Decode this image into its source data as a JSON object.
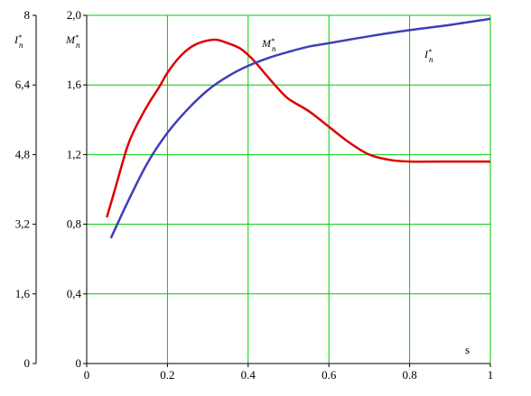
{
  "chart_data": {
    "type": "line",
    "xlabel": "s",
    "xlim": [
      0,
      1
    ],
    "x_ticks": [
      "0",
      "0.2",
      "0.4",
      "0.6",
      "0.8",
      "1"
    ],
    "y_left": {
      "label": "I*п",
      "ticks": [
        "0",
        "1,6",
        "3,2",
        "4,8",
        "6,4",
        "8"
      ],
      "ylim": [
        0,
        8
      ]
    },
    "y_right": {
      "label": "M*п",
      "ticks": [
        "0",
        "0,4",
        "0,8",
        "1,2",
        "1,6",
        "2,0"
      ],
      "ylim": [
        0,
        2.0
      ]
    },
    "grid": true,
    "grid_color": "#00cc00",
    "series": [
      {
        "name": "M*п",
        "color": "#dd0000",
        "axis": "right",
        "x": [
          0.05,
          0.07,
          0.1,
          0.12,
          0.15,
          0.18,
          0.2,
          0.23,
          0.26,
          0.29,
          0.32,
          0.35,
          0.38,
          0.41,
          0.44,
          0.47,
          0.5,
          0.55,
          0.6,
          0.65,
          0.7,
          0.75,
          0.8,
          0.9,
          1.0
        ],
        "values": [
          0.84,
          1.0,
          1.24,
          1.35,
          1.48,
          1.59,
          1.67,
          1.76,
          1.82,
          1.85,
          1.86,
          1.84,
          1.81,
          1.75,
          1.67,
          1.59,
          1.52,
          1.45,
          1.36,
          1.27,
          1.2,
          1.17,
          1.16,
          1.16,
          1.16
        ]
      },
      {
        "name": "I*п",
        "color": "#3f3fb5",
        "axis": "left",
        "x": [
          0.06,
          0.1,
          0.15,
          0.2,
          0.25,
          0.3,
          0.35,
          0.4,
          0.45,
          0.5,
          0.55,
          0.6,
          0.7,
          0.8,
          0.9,
          1.0
        ],
        "values": [
          2.88,
          3.68,
          4.6,
          5.3,
          5.84,
          6.28,
          6.6,
          6.84,
          7.02,
          7.16,
          7.28,
          7.36,
          7.52,
          7.66,
          7.78,
          7.92
        ]
      }
    ]
  }
}
